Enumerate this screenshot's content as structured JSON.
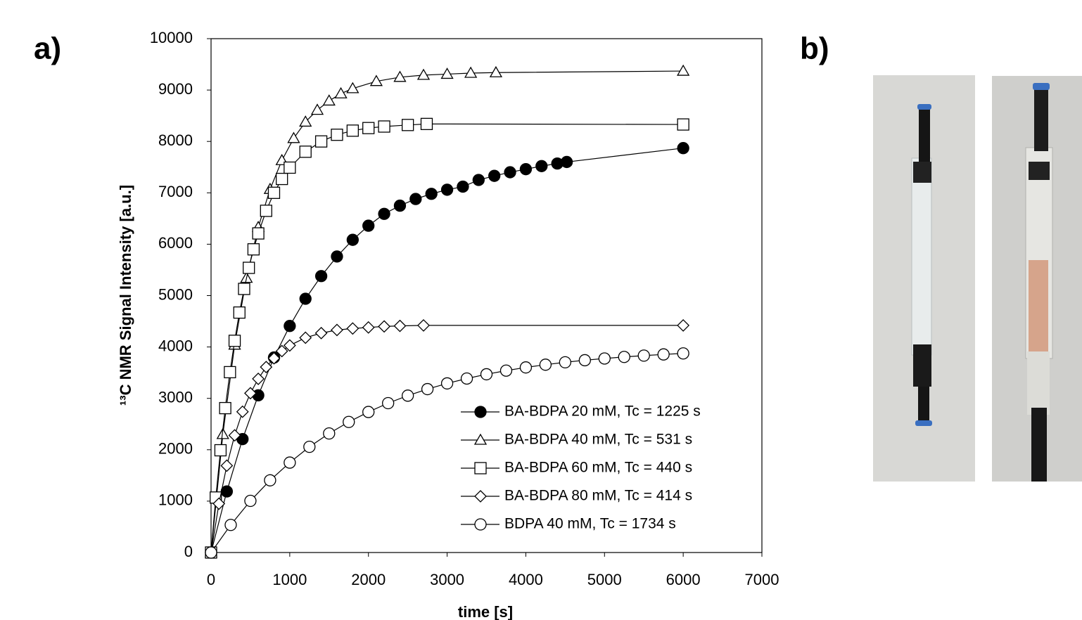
{
  "panel_labels": [
    "a)",
    "b)"
  ],
  "chart_data": {
    "type": "scatter",
    "x_label": "time [s]",
    "y_label": "¹³C NMR Signal Intensity [a.u.]",
    "xlim": [
      0,
      7000
    ],
    "xticks": [
      0,
      1000,
      2000,
      3000,
      4000,
      5000,
      6000,
      7000
    ],
    "ylim": [
      0,
      10000
    ],
    "yticks": [
      0,
      1000,
      2000,
      3000,
      4000,
      5000,
      6000,
      7000,
      8000,
      9000,
      10000
    ],
    "grid": false,
    "legend": "lower right",
    "series": [
      {
        "name": "BA-BDPA 20 mM, Tc = 1225 s",
        "color": "#000000",
        "marker": "circle",
        "fill": "#000000",
        "x": [
          0,
          200,
          400,
          600,
          800,
          1000,
          1200,
          1400,
          1600,
          1800,
          2000,
          2200,
          2400,
          2600,
          2800,
          3000,
          3200,
          3400,
          3600,
          3800,
          4000,
          4200,
          4400,
          4520,
          6000
        ],
        "values": [
          0,
          1188,
          2207,
          3059,
          3795,
          4409,
          4938,
          5380,
          5761,
          6085,
          6360,
          6590,
          6750,
          6880,
          6980,
          7060,
          7120,
          7250,
          7330,
          7400,
          7460,
          7520,
          7570,
          7600,
          7870
        ]
      },
      {
        "name": "BA-BDPA 40 mM, Tc = 531 s",
        "color": "#000000",
        "marker": "triangle",
        "fill": "#ffffff",
        "x": [
          0,
          150,
          300,
          450,
          600,
          750,
          900,
          1050,
          1200,
          1350,
          1500,
          1650,
          1800,
          2100,
          2400,
          2700,
          3000,
          3300,
          3620,
          6000
        ],
        "values": [
          0,
          2300,
          4040,
          5340,
          6330,
          7070,
          7630,
          8060,
          8380,
          8610,
          8790,
          8930,
          9030,
          9170,
          9250,
          9290,
          9310,
          9330,
          9340,
          9370
        ]
      },
      {
        "name": "BA-BDPA 60 mM, Tc = 440 s",
        "color": "#000000",
        "marker": "square",
        "fill": "#ffffff",
        "x": [
          0,
          60,
          120,
          180,
          240,
          300,
          360,
          420,
          480,
          540,
          600,
          700,
          800,
          900,
          1000,
          1200,
          1400,
          1600,
          1800,
          2000,
          2200,
          2500,
          2740,
          6000
        ],
        "values": [
          0,
          1070,
          1990,
          2810,
          3510,
          4120,
          4670,
          5130,
          5540,
          5900,
          6210,
          6650,
          7000,
          7270,
          7490,
          7800,
          8000,
          8130,
          8210,
          8260,
          8290,
          8320,
          8340,
          8330
        ]
      },
      {
        "name": "BA-BDPA 80 mM, Tc = 414 s",
        "color": "#000000",
        "marker": "diamond",
        "fill": "#ffffff",
        "x": [
          0,
          100,
          200,
          300,
          400,
          500,
          600,
          700,
          800,
          900,
          1000,
          1200,
          1400,
          1600,
          1800,
          2000,
          2200,
          2400,
          2700,
          6000
        ],
        "values": [
          0,
          950,
          1690,
          2280,
          2740,
          3100,
          3380,
          3610,
          3780,
          3920,
          4030,
          4180,
          4270,
          4330,
          4360,
          4380,
          4400,
          4410,
          4420,
          4420
        ]
      },
      {
        "name": "BDPA 40 mM, Tc = 1734 s",
        "color": "#000000",
        "marker": "circle",
        "fill": "#ffffff",
        "x": [
          0,
          250,
          500,
          750,
          1000,
          1250,
          1500,
          1750,
          2000,
          2250,
          2500,
          2750,
          3000,
          3250,
          3500,
          3750,
          4000,
          4250,
          4500,
          4750,
          5000,
          5250,
          5500,
          5750,
          6000
        ],
        "values": [
          0,
          537,
          1005,
          1405,
          1750,
          2057,
          2317,
          2541,
          2735,
          2907,
          3053,
          3180,
          3291,
          3386,
          3469,
          3540,
          3602,
          3655,
          3702,
          3742,
          3776,
          3806,
          3832,
          3855,
          3875
        ]
      }
    ]
  }
}
